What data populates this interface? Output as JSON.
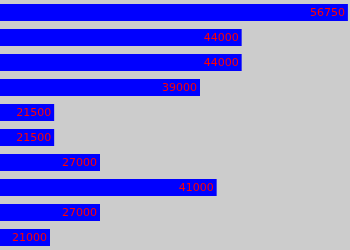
{
  "chart_data": {
    "type": "bar",
    "orientation": "horizontal",
    "categories": [
      null,
      null,
      null,
      null,
      null,
      null,
      null,
      null,
      null,
      null
    ],
    "values": [
      56750,
      44000,
      44000,
      39000,
      21500,
      21500,
      27000,
      41000,
      27000,
      21000
    ],
    "color": "#0000ff",
    "xlim": [
      15000,
      57000
    ],
    "grid": false,
    "data_labels": true,
    "tick_labels": false
  }
}
